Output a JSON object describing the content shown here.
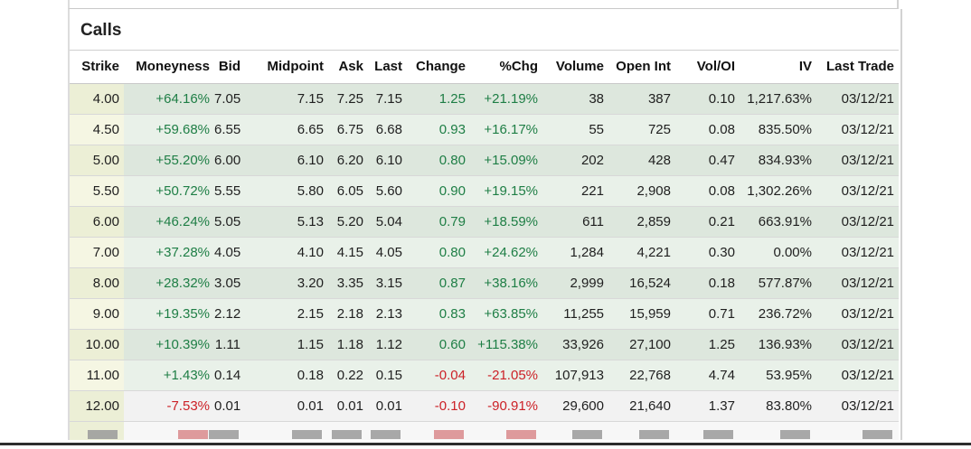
{
  "section": {
    "title": "Calls"
  },
  "table": {
    "columns": [
      {
        "key": "strike",
        "label": "Strike"
      },
      {
        "key": "moneyness",
        "label": "Moneyness"
      },
      {
        "key": "bid",
        "label": "Bid"
      },
      {
        "key": "midpoint",
        "label": "Midpoint"
      },
      {
        "key": "ask",
        "label": "Ask"
      },
      {
        "key": "last",
        "label": "Last"
      },
      {
        "key": "change",
        "label": "Change"
      },
      {
        "key": "pct_chg",
        "label": "%Chg"
      },
      {
        "key": "volume",
        "label": "Volume"
      },
      {
        "key": "open_int",
        "label": "Open Int"
      },
      {
        "key": "vol_oi",
        "label": "Vol/OI"
      },
      {
        "key": "iv",
        "label": "IV"
      },
      {
        "key": "last_trade",
        "label": "Last Trade"
      }
    ],
    "rows": [
      [
        "4.00",
        "+64.16%",
        "7.05",
        "7.15",
        "7.25",
        "7.15",
        "1.25",
        "+21.19%",
        "38",
        "387",
        "0.10",
        "1,217.63%",
        "03/12/21"
      ],
      [
        "4.50",
        "+59.68%",
        "6.55",
        "6.65",
        "6.75",
        "6.68",
        "0.93",
        "+16.17%",
        "55",
        "725",
        "0.08",
        "835.50%",
        "03/12/21"
      ],
      [
        "5.00",
        "+55.20%",
        "6.00",
        "6.10",
        "6.20",
        "6.10",
        "0.80",
        "+15.09%",
        "202",
        "428",
        "0.47",
        "834.93%",
        "03/12/21"
      ],
      [
        "5.50",
        "+50.72%",
        "5.55",
        "5.80",
        "6.05",
        "5.60",
        "0.90",
        "+19.15%",
        "221",
        "2,908",
        "0.08",
        "1,302.26%",
        "03/12/21"
      ],
      [
        "6.00",
        "+46.24%",
        "5.05",
        "5.13",
        "5.20",
        "5.04",
        "0.79",
        "+18.59%",
        "611",
        "2,859",
        "0.21",
        "663.91%",
        "03/12/21"
      ],
      [
        "7.00",
        "+37.28%",
        "4.05",
        "4.10",
        "4.15",
        "4.05",
        "0.80",
        "+24.62%",
        "1,284",
        "4,221",
        "0.30",
        "0.00%",
        "03/12/21"
      ],
      [
        "8.00",
        "+28.32%",
        "3.05",
        "3.20",
        "3.35",
        "3.15",
        "0.87",
        "+38.16%",
        "2,999",
        "16,524",
        "0.18",
        "577.87%",
        "03/12/21"
      ],
      [
        "9.00",
        "+19.35%",
        "2.12",
        "2.15",
        "2.18",
        "2.13",
        "0.83",
        "+63.85%",
        "11,255",
        "15,959",
        "0.71",
        "236.72%",
        "03/12/21"
      ],
      [
        "10.00",
        "+10.39%",
        "1.11",
        "1.15",
        "1.18",
        "1.12",
        "0.60",
        "+115.38%",
        "33,926",
        "27,100",
        "1.25",
        "136.93%",
        "03/12/21"
      ],
      [
        "11.00",
        "+1.43%",
        "0.14",
        "0.18",
        "0.22",
        "0.15",
        "-0.04",
        "-21.05%",
        "107,913",
        "22,768",
        "4.74",
        "53.95%",
        "03/12/21"
      ],
      [
        "12.00",
        "-7.53%",
        "0.01",
        "0.01",
        "0.01",
        "0.01",
        "-0.10",
        "-90.91%",
        "29,600",
        "21,640",
        "1.37",
        "83.80%",
        "03/12/21"
      ]
    ],
    "partial_next_row_visible": true
  },
  "colors": {
    "positive_text": "#1e7e45",
    "negative_text": "#cc2127",
    "strike_col_odd": "#ecefd6",
    "strike_col_even": "#f5f6e3",
    "itm_row_odd": "#dde7dd",
    "itm_row_even": "#e9f1e9",
    "otm_row": "#f2f2f2"
  }
}
